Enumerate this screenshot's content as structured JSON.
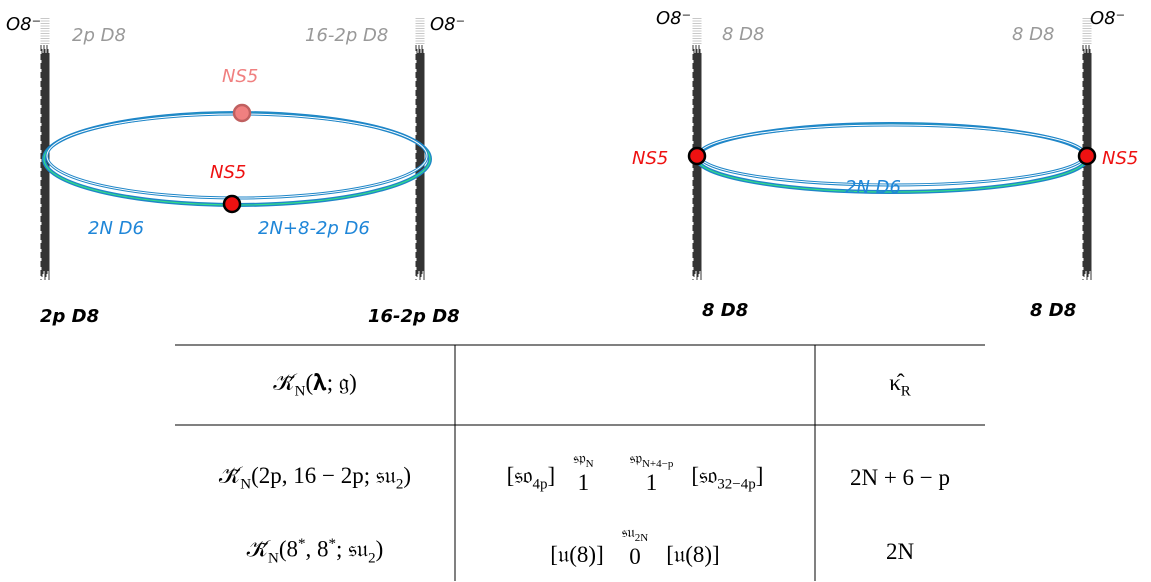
{
  "left_diagram": {
    "labels": [
      "O8⁻",
      "2p D8",
      "16-2p D8",
      "O8⁻",
      "NS5",
      "NS5",
      "2N D6",
      "2N+8-2p D6",
      "2p D8",
      "16-2p D8"
    ]
  },
  "right_diagram": {
    "labels": [
      "O8⁻",
      "8 D8",
      "8 D8",
      "O8⁻",
      "NS5",
      "NS5",
      "2N D6",
      "8 D8",
      "8 D8"
    ]
  },
  "table": {
    "header": {
      "theory": [
        "𝒦̃",
        {
          "sub": "N"
        },
        "(𝛌; 𝔤)"
      ],
      "kappa": [
        "κ̂",
        {
          "sub": "R"
        }
      ]
    },
    "rows": [
      {
        "theory": [
          "𝒦̃",
          {
            "sub": "N"
          },
          "(2p, 16 − 2p; 𝔰𝔲",
          {
            "sub": "2"
          },
          ")"
        ],
        "quiver": {
          "left": [
            "[𝔰𝔬",
            {
              "sub": "4p"
            },
            "]"
          ],
          "nodes": [
            {
              "label": [
                "𝔰𝔭",
                {
                  "sub": "N"
                }
              ],
              "rank": "1"
            },
            {
              "label": [
                "𝔰𝔭",
                {
                  "sub": "N+4−p"
                }
              ],
              "rank": "1"
            }
          ],
          "right": [
            "[𝔰𝔬",
            {
              "sub": "32−4p"
            },
            "]"
          ]
        },
        "kappa": [
          "2N + 6 − p"
        ]
      },
      {
        "theory": [
          "𝒦̃",
          {
            "sub": "N"
          },
          "(8",
          {
            "sup": "*"
          },
          ", 8",
          {
            "sup": "*"
          },
          "; 𝔰𝔲",
          {
            "sub": "2"
          },
          ")"
        ],
        "quiver": {
          "left": [
            "[𝔲(8)]"
          ],
          "nodes": [
            {
              "label": [
                "𝔰𝔲",
                {
                  "sub": "2N"
                }
              ],
              "rank": "0"
            }
          ],
          "right": [
            "[𝔲(8)]"
          ]
        },
        "kappa": [
          "2N"
        ]
      }
    ]
  }
}
